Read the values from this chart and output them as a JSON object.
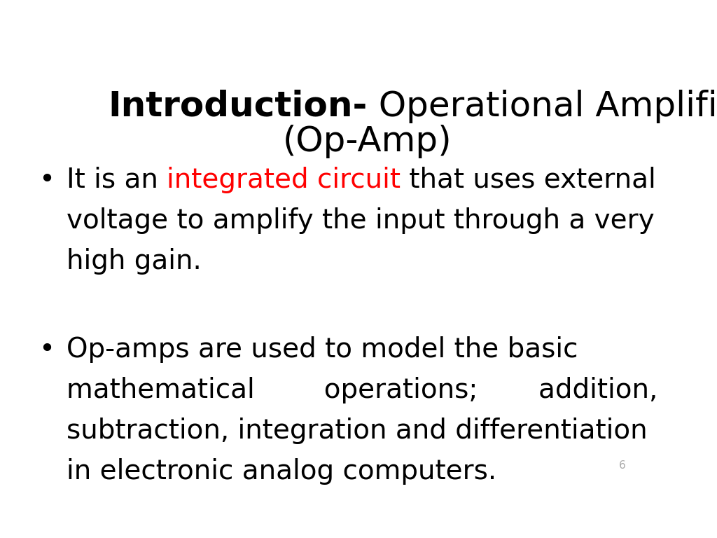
{
  "background_color": "#ffffff",
  "title_bold": "Introduction-",
  "title_normal": " Operational Amplifier",
  "title_line2": "(Op-Amp)",
  "title_fontsize": 36,
  "bullet_fontsize": 28,
  "bullet1_prefix": "It is an ",
  "bullet1_red": "integrated circuit",
  "bullet1_suffix": " that uses external",
  "bullet1_line2": "voltage to amplify the input through a very",
  "bullet1_line3": "high gain.",
  "bullet2_lines": [
    "Op-amps are used to model the basic",
    "mathematical        operations;       addition,",
    "subtraction, integration and differentiation",
    "in electronic analog computers."
  ],
  "page_number": "6",
  "page_number_color": "#aaaaaa",
  "page_number_fontsize": 11
}
